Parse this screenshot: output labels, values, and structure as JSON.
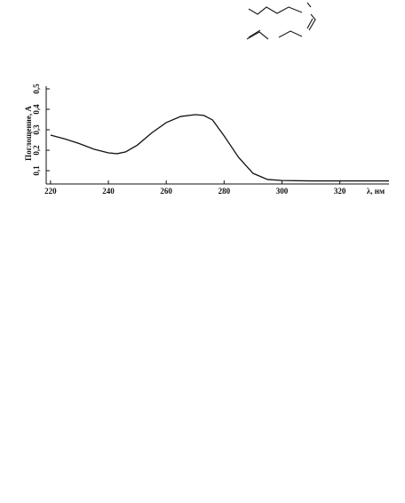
{
  "chart_data": {
    "type": "line",
    "x_label": "λ, нм",
    "y_label": "Поглощение, А",
    "x": [
      220,
      225,
      230,
      235,
      240,
      243,
      246,
      250,
      255,
      260,
      265,
      270,
      273,
      276,
      280,
      285,
      290,
      295,
      300,
      310,
      320,
      330,
      337
    ],
    "series": [
      {
        "color": "#111111",
        "values": [
          0.274,
          0.255,
          0.232,
          0.205,
          0.187,
          0.183,
          0.192,
          0.225,
          0.285,
          0.335,
          0.365,
          0.374,
          0.37,
          0.348,
          0.27,
          0.165,
          0.087,
          0.057,
          0.052,
          0.05,
          0.05,
          0.05,
          0.05
        ]
      }
    ],
    "xlim": [
      218.5,
      337
    ],
    "ylim": [
      0.035,
      0.513
    ],
    "xticks": [
      220,
      240,
      260,
      280,
      300,
      320
    ],
    "yticks": [
      {
        "value": 0.1,
        "label": "0,1"
      },
      {
        "value": 0.2,
        "label": "0,2"
      },
      {
        "value": 0.3,
        "label": "0,3"
      },
      {
        "value": 0.4,
        "label": "0,4"
      },
      {
        "value": 0.5,
        "label": "0,5"
      }
    ]
  }
}
